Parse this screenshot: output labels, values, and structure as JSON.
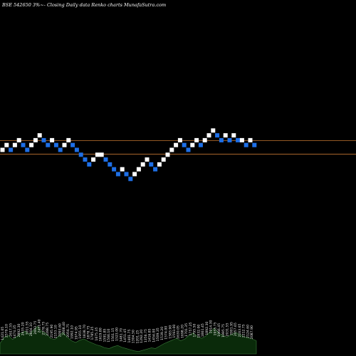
{
  "chart_data": {
    "type": "renko",
    "title": "BSE 542650  3%~-  Closing Daily data  Renko  charts MunafaSutra.com",
    "colors": {
      "background": "#000000",
      "up_brick": "#ffffff",
      "down_brick": "#1e6fe6",
      "reference_line": "#a8652a",
      "volume_fill": "#0a2a0a",
      "volume_stroke": "#3a7a3a"
    },
    "reference_lines": [
      {
        "name": "upper-line",
        "level": 2.0
      },
      {
        "name": "lower-line",
        "level": 0.0
      }
    ],
    "ylim": [
      -6,
      4
    ],
    "bricks": [
      {
        "level": 0,
        "direction": "up"
      },
      {
        "level": 1,
        "direction": "up"
      },
      {
        "level": 0,
        "direction": "down"
      },
      {
        "level": 1,
        "direction": "up"
      },
      {
        "level": 2,
        "direction": "up"
      },
      {
        "level": 1,
        "direction": "down"
      },
      {
        "level": 0,
        "direction": "down"
      },
      {
        "level": 1,
        "direction": "up"
      },
      {
        "level": 2,
        "direction": "up"
      },
      {
        "level": 3,
        "direction": "up"
      },
      {
        "level": 2,
        "direction": "down"
      },
      {
        "level": 1,
        "direction": "down"
      },
      {
        "level": 2,
        "direction": "up"
      },
      {
        "level": 1,
        "direction": "down"
      },
      {
        "level": 0,
        "direction": "down"
      },
      {
        "level": 1,
        "direction": "up"
      },
      {
        "level": 2,
        "direction": "up"
      },
      {
        "level": 1,
        "direction": "down"
      },
      {
        "level": 0,
        "direction": "down"
      },
      {
        "level": -1,
        "direction": "down"
      },
      {
        "level": -2,
        "direction": "down"
      },
      {
        "level": -3,
        "direction": "down"
      },
      {
        "level": -2,
        "direction": "up"
      },
      {
        "level": -1,
        "direction": "up"
      },
      {
        "level": -1,
        "direction": "up"
      },
      {
        "level": -2,
        "direction": "down"
      },
      {
        "level": -3,
        "direction": "down"
      },
      {
        "level": -4,
        "direction": "down"
      },
      {
        "level": -5,
        "direction": "down"
      },
      {
        "level": -4,
        "direction": "up"
      },
      {
        "level": -5,
        "direction": "down"
      },
      {
        "level": -6,
        "direction": "down"
      },
      {
        "level": -5,
        "direction": "up"
      },
      {
        "level": -4,
        "direction": "up"
      },
      {
        "level": -3,
        "direction": "up"
      },
      {
        "level": -2,
        "direction": "up"
      },
      {
        "level": -3,
        "direction": "down"
      },
      {
        "level": -4,
        "direction": "down"
      },
      {
        "level": -3,
        "direction": "up"
      },
      {
        "level": -2,
        "direction": "up"
      },
      {
        "level": -1,
        "direction": "up"
      },
      {
        "level": 0,
        "direction": "up"
      },
      {
        "level": 1,
        "direction": "up"
      },
      {
        "level": 2,
        "direction": "up"
      },
      {
        "level": 1,
        "direction": "down"
      },
      {
        "level": 0,
        "direction": "down"
      },
      {
        "level": 1,
        "direction": "up"
      },
      {
        "level": 2,
        "direction": "up"
      },
      {
        "level": 1,
        "direction": "down"
      },
      {
        "level": 2,
        "direction": "up"
      },
      {
        "level": 3,
        "direction": "up"
      },
      {
        "level": 4,
        "direction": "up"
      },
      {
        "level": 3,
        "direction": "down"
      },
      {
        "level": 2,
        "direction": "down"
      },
      {
        "level": 3,
        "direction": "up"
      },
      {
        "level": 2,
        "direction": "down"
      },
      {
        "level": 3,
        "direction": "up"
      },
      {
        "level": 2,
        "direction": "down"
      },
      {
        "level": 2,
        "direction": "up"
      },
      {
        "level": 1,
        "direction": "down"
      },
      {
        "level": 2,
        "direction": "up"
      },
      {
        "level": 1,
        "direction": "down"
      }
    ],
    "volume_labels": [
      "1421.05",
      "2579.10",
      "2617.55",
      "1474.35",
      "2892.30",
      "2635.20",
      "3011.55",
      "2804.10",
      "2693.75",
      "2451.40",
      "2378.75",
      "2288.75",
      "2195.90",
      "2153.10",
      "2093.60",
      "2008.40",
      "2056.75",
      "1992.10",
      "1974.95",
      "1955.10",
      "1838.70",
      "1878.75",
      "1785.25",
      "1675.35",
      "1619.80",
      "1591.85",
      "1566.10",
      "1561.15",
      "1523.00",
      "1481.70",
      "1451.45",
      "1401.75",
      "1304.50",
      "1201.25",
      "1292.20",
      "1356.75",
      "1416.85",
      "1454.00",
      "1509.35",
      "1539.20",
      "1574.00",
      "1583.90",
      "1593.00",
      "1630.05",
      "1698.20",
      "1701.35",
      "1757.25",
      "1795.50",
      "1832.00",
      "1861.45",
      "1892.30",
      "1914.30",
      "1955.75",
      "1966.45",
      "1995.75",
      "2031.55",
      "2001.95",
      "2057.65",
      "2163.65",
      "2212.75",
      "2124.60",
      "2087.90"
    ],
    "volume_profile": [
      0.35,
      0.55,
      0.62,
      0.48,
      0.58,
      0.7,
      0.76,
      0.66,
      0.8,
      0.92,
      0.74,
      0.68,
      0.52,
      0.48,
      0.6,
      0.72,
      0.56,
      0.44,
      0.38,
      0.46,
      0.5,
      0.42,
      0.36,
      0.3,
      0.26,
      0.2,
      0.18,
      0.24,
      0.28,
      0.22,
      0.18,
      0.14,
      0.1,
      0.08,
      0.12,
      0.16,
      0.2,
      0.18,
      0.26,
      0.34,
      0.4,
      0.46,
      0.52,
      0.44,
      0.5,
      0.62,
      0.7,
      0.58,
      0.52,
      0.6,
      0.74,
      0.86,
      0.7,
      0.62,
      0.56,
      0.64,
      0.72,
      0.66,
      0.58,
      0.54,
      0.5,
      0.44
    ]
  }
}
